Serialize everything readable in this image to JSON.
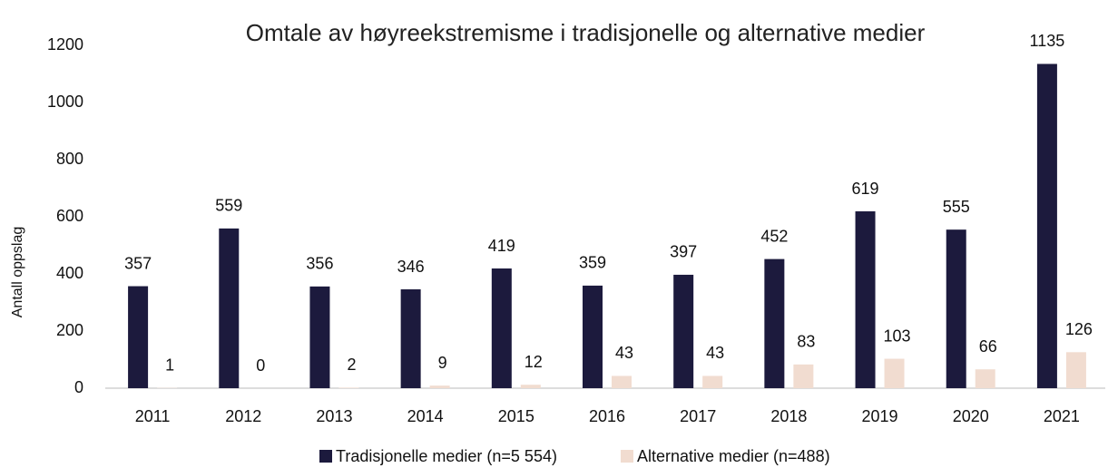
{
  "chart_data": {
    "type": "bar",
    "title": "Omtale av høyreekstremisme i tradisjonelle og alternative medier",
    "y_label": "Antall oppslag",
    "categories": [
      "2011",
      "2012",
      "2013",
      "2014",
      "2015",
      "2016",
      "2017",
      "2018",
      "2019",
      "2020",
      "2021"
    ],
    "series": [
      {
        "name": "Tradisjonelle medier (n=5 554)",
        "color": "#1c1a3d",
        "values": [
          357,
          559,
          356,
          346,
          419,
          359,
          397,
          452,
          619,
          555,
          1135
        ]
      },
      {
        "name": "Alternative medier (n=488)",
        "color": "#f1dcd0",
        "values": [
          1,
          0,
          2,
          9,
          12,
          43,
          43,
          83,
          103,
          66,
          126
        ]
      }
    ],
    "ylim": [
      0,
      1200
    ],
    "yticks": [
      0,
      200,
      400,
      600,
      800,
      1000,
      1200
    ],
    "grid": false,
    "legend": "bottom"
  }
}
